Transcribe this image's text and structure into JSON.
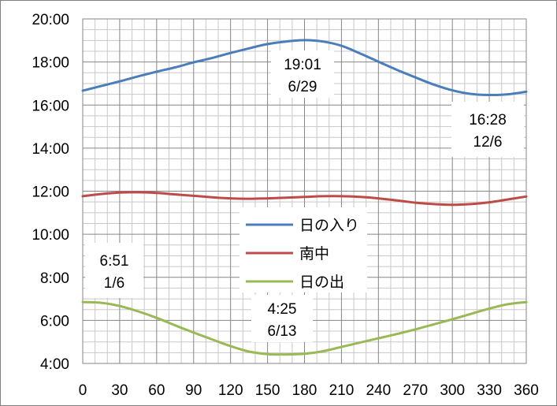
{
  "chart_data": {
    "type": "line",
    "x": [
      0,
      15,
      30,
      45,
      60,
      75,
      90,
      105,
      120,
      135,
      150,
      165,
      180,
      195,
      210,
      225,
      240,
      255,
      270,
      285,
      300,
      315,
      330,
      345,
      360
    ],
    "xticks": [
      0,
      30,
      60,
      90,
      120,
      150,
      180,
      210,
      240,
      270,
      300,
      330,
      360
    ],
    "xlim": [
      0,
      360
    ],
    "yticks": [
      "4:00",
      "6:00",
      "8:00",
      "10:00",
      "12:00",
      "14:00",
      "16:00",
      "18:00",
      "20:00"
    ],
    "ylim": [
      "4:00",
      "20:00"
    ],
    "grid": true,
    "legend_position": "center",
    "series": [
      {
        "name": "日の入り",
        "color": "#4a7ebb",
        "values": [
          "16:40",
          "16:53",
          "17:06",
          "17:20",
          "17:33",
          "17:45",
          "17:59",
          "18:11",
          "18:25",
          "18:38",
          "18:50",
          "18:57",
          "19:01",
          "18:57",
          "18:45",
          "18:24",
          "18:01",
          "17:38",
          "17:17",
          "16:57",
          "16:41",
          "16:31",
          "16:28",
          "16:30",
          "16:37"
        ]
      },
      {
        "name": "南中",
        "color": "#be4b48",
        "values": [
          "11:46",
          "11:52",
          "11:56",
          "11:57",
          "11:55",
          "11:51",
          "11:47",
          "11:43",
          "11:40",
          "11:39",
          "11:40",
          "11:42",
          "11:44",
          "11:46",
          "11:46",
          "11:44",
          "11:40",
          "11:34",
          "11:28",
          "11:24",
          "11:22",
          "11:24",
          "11:29",
          "11:37",
          "11:45"
        ]
      },
      {
        "name": "日の出",
        "color": "#98b954",
        "values": [
          "6:51",
          "6:49",
          "6:40",
          "6:25",
          "6:07",
          "5:46",
          "5:26",
          "5:07",
          "4:48",
          "4:33",
          "4:26",
          "4:25",
          "4:27",
          "4:34",
          "4:46",
          "4:58",
          "5:10",
          "5:22",
          "5:35",
          "5:49",
          "6:03",
          "6:18",
          "6:33",
          "6:45",
          "6:51"
        ]
      }
    ],
    "annotations": [
      {
        "line1": "19:01",
        "line2": "6/29"
      },
      {
        "line1": "16:28",
        "line2": "12/6"
      },
      {
        "line1": "6:51",
        "line2": "1/6"
      },
      {
        "line1": "4:25",
        "line2": "6/13"
      }
    ]
  }
}
